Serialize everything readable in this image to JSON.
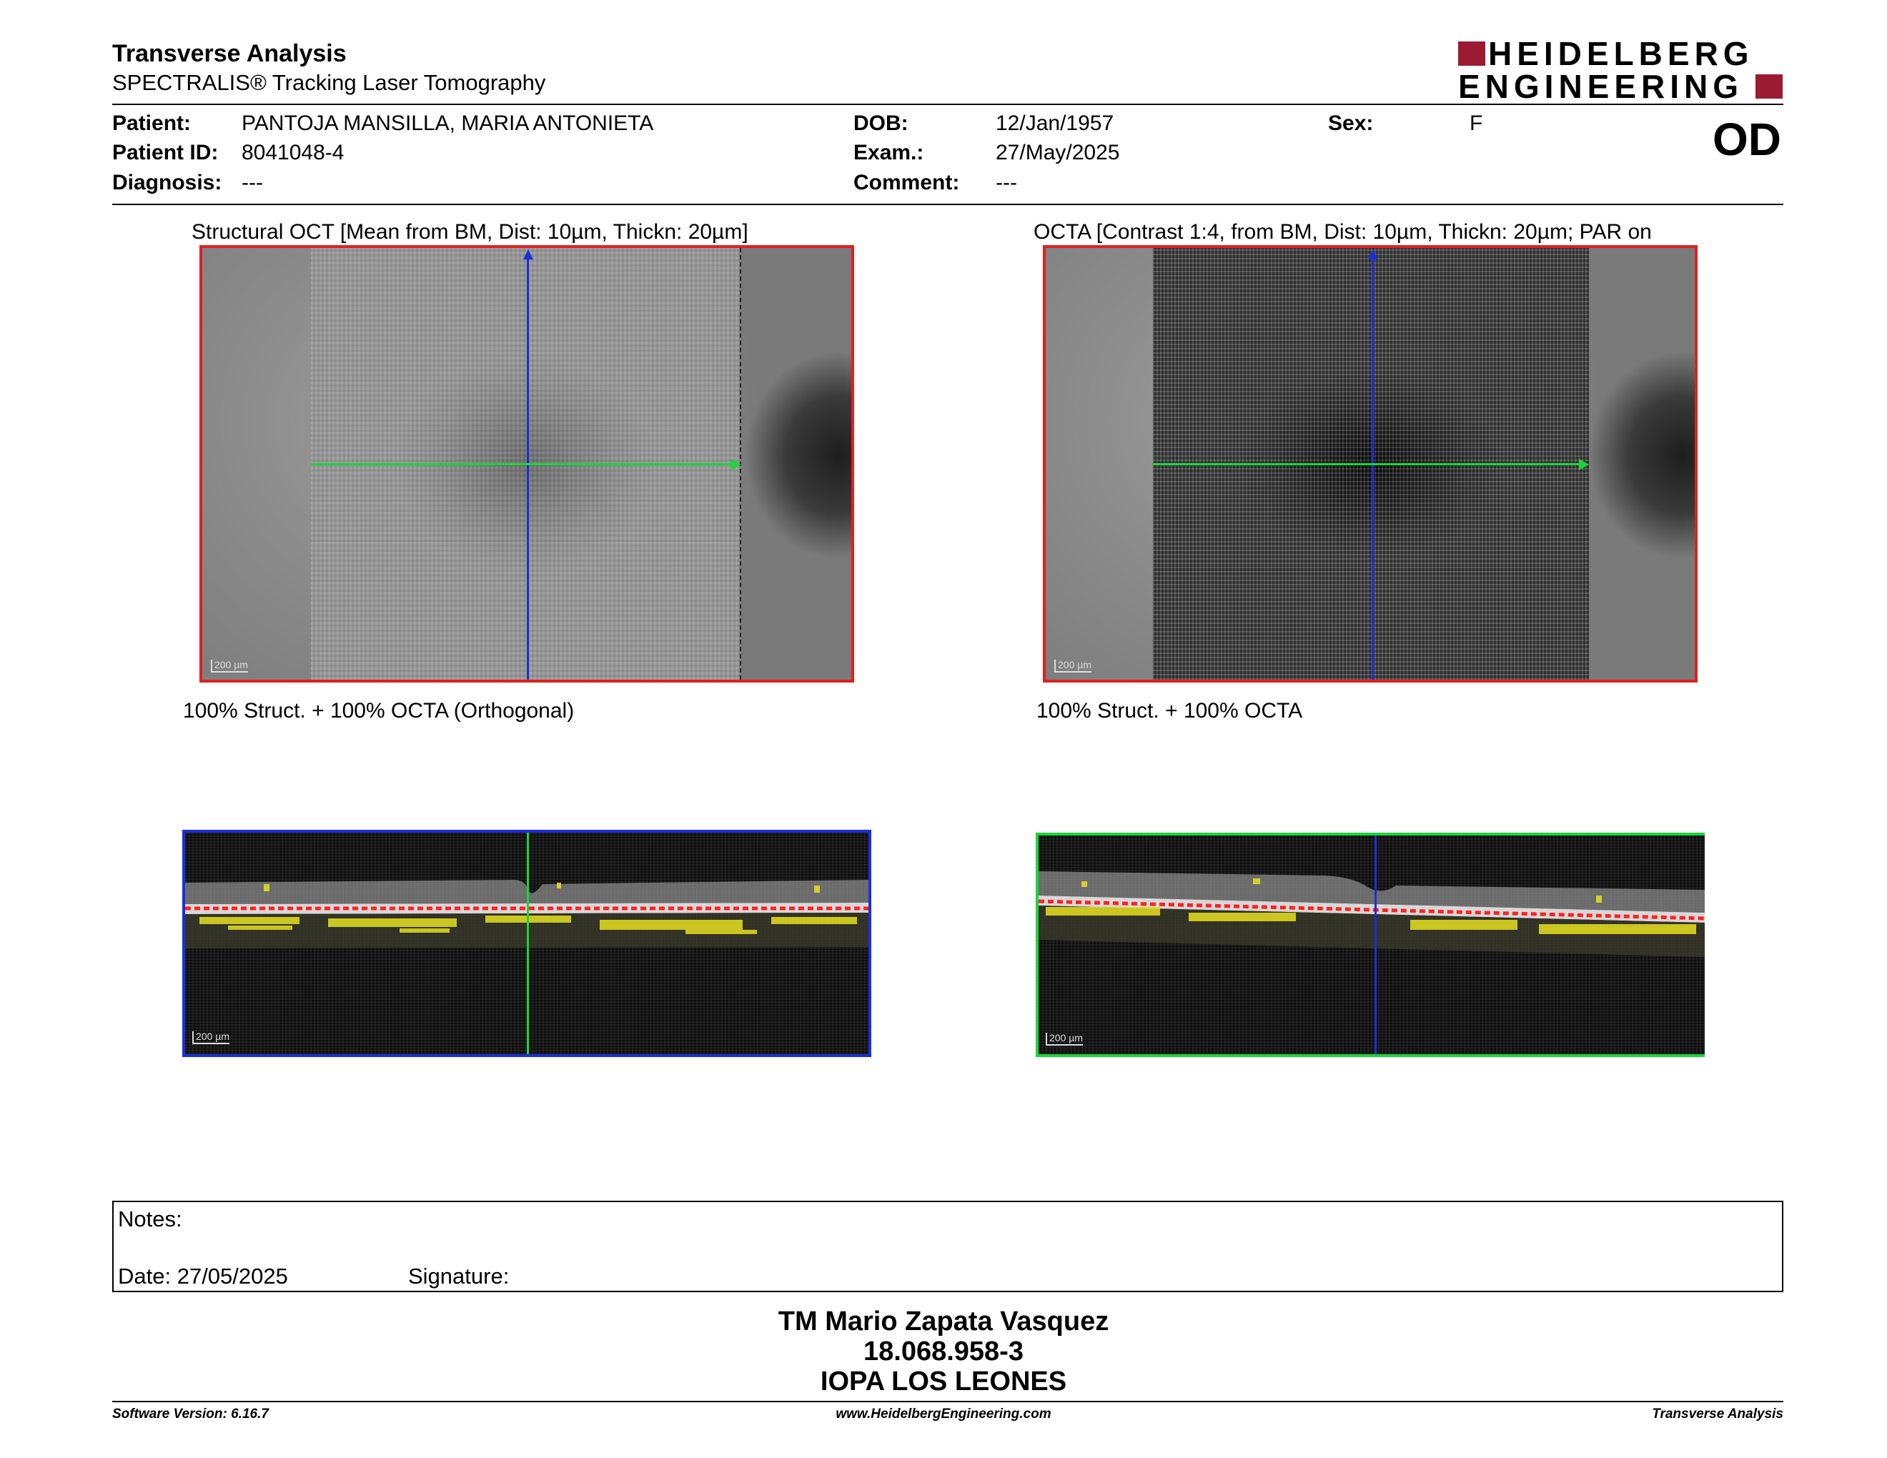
{
  "header": {
    "title": "Transverse Analysis",
    "subtitle": "SPECTRALIS® Tracking Laser Tomography",
    "logo_line1": "HEIDELBERG",
    "logo_line2": "ENGINEERING",
    "eye": "OD"
  },
  "patient": {
    "patient_label": "Patient:",
    "patient_value": "PANTOJA MANSILLA, MARIA ANTONIETA",
    "patient_id_label": "Patient ID:",
    "patient_id_value": "8041048-4",
    "diagnosis_label": "Diagnosis:",
    "diagnosis_value": "---",
    "dob_label": "DOB:",
    "dob_value": "12/Jan/1957",
    "exam_label": "Exam.:",
    "exam_value": "27/May/2025",
    "comment_label": "Comment:",
    "comment_value": "---",
    "sex_label": "Sex:",
    "sex_value": "F"
  },
  "images": {
    "struct_caption": "Structural OCT [Mean from BM, Dist: 10µm, Thickn: 20µm]",
    "octa_caption": "OCTA [Contrast 1:4, from BM, Dist: 10µm, Thickn: 20µm; PAR on",
    "struct_bottom_caption": "100% Struct. + 100% OCTA (Orthogonal)",
    "octa_bottom_caption": "100% Struct. + 100% OCTA",
    "scale_label": "200 µm"
  },
  "notes": {
    "notes_label": "Notes:",
    "date_label": "Date: 27/05/2025",
    "signature_label": "Signature:"
  },
  "signature_block": {
    "name": "TM Mario Zapata Vasquez",
    "id": "18.068.958-3",
    "institution": "IOPA LOS LEONES"
  },
  "footer": {
    "software_version": "Software Version: 6.16.7",
    "website": "www.HeidelbergEngineering.com",
    "report_type": "Transverse Analysis"
  },
  "colors": {
    "logo_red": "#9b1b30",
    "frame_red": "#e02020",
    "frame_blue": "#1b2fd8",
    "frame_green": "#19d63a",
    "segmentation_red": "#ff2020",
    "flow_yellow": "#e6e020"
  }
}
